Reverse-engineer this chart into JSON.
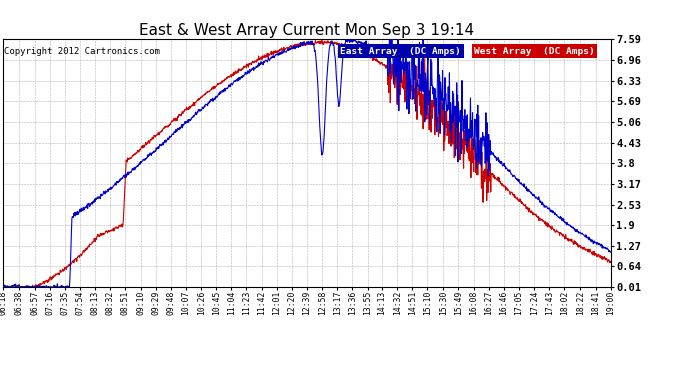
{
  "title": "East & West Array Current Mon Sep 3 19:14",
  "copyright": "Copyright 2012 Cartronics.com",
  "legend_east": "East Array  (DC Amps)",
  "legend_west": "West Array  (DC Amps)",
  "east_color": "#0000cc",
  "west_color": "#cc0000",
  "legend_east_bg": "#0000aa",
  "legend_west_bg": "#cc0000",
  "background_color": "#ffffff",
  "plot_bg_color": "#ffffff",
  "grid_color": "#aaaaaa",
  "yticks": [
    0.01,
    0.64,
    1.27,
    1.9,
    2.53,
    3.17,
    3.8,
    4.43,
    5.06,
    5.69,
    6.33,
    6.96,
    7.59
  ],
  "ymin": 0.01,
  "ymax": 7.59,
  "xtick_labels": [
    "06:18",
    "06:38",
    "06:57",
    "07:16",
    "07:35",
    "07:54",
    "08:13",
    "08:32",
    "08:51",
    "09:10",
    "09:29",
    "09:48",
    "10:07",
    "10:26",
    "10:45",
    "11:04",
    "11:23",
    "11:42",
    "12:01",
    "12:20",
    "12:39",
    "12:58",
    "13:17",
    "13:36",
    "13:55",
    "14:13",
    "14:32",
    "14:51",
    "15:10",
    "15:30",
    "15:49",
    "16:08",
    "16:27",
    "16:46",
    "17:05",
    "17:24",
    "17:43",
    "18:02",
    "18:22",
    "18:41",
    "19:00"
  ],
  "line_width": 0.8,
  "start_time": "06:18",
  "end_time": "19:00"
}
